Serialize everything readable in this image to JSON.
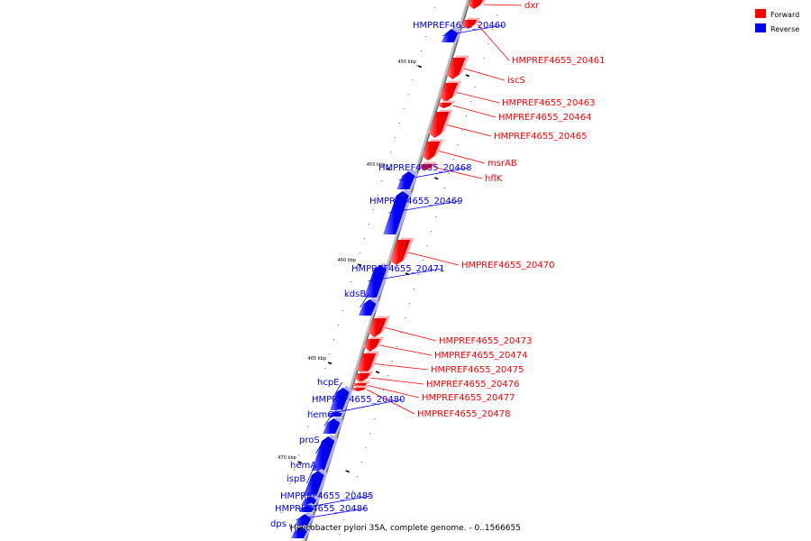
{
  "caption": "Helicobacter pylori 35A, complete genome. - 0..1566655",
  "legend": [
    {
      "label": "Forward",
      "color": "#ff0000"
    },
    {
      "label": "Reverse",
      "color": "#0000ff"
    }
  ],
  "colors": {
    "forward": "#ff0000",
    "reverse": "#0000ff",
    "backbone": "#888888"
  },
  "ticks": [
    "450 kbp",
    "455 kbp",
    "460 kbp",
    "465 kbp",
    "470 kbp"
  ],
  "genes": [
    {
      "label": "dxr",
      "strand": "forward"
    },
    {
      "label": "HMPREF4655_20460",
      "strand": "reverse"
    },
    {
      "label": "HMPREF4655_20461",
      "strand": "forward"
    },
    {
      "label": "iscS",
      "strand": "forward"
    },
    {
      "label": "HMPREF4655_20463",
      "strand": "forward"
    },
    {
      "label": "HMPREF4655_20464",
      "strand": "forward"
    },
    {
      "label": "HMPREF4655_20465",
      "strand": "forward"
    },
    {
      "label": "msrAB",
      "strand": "forward"
    },
    {
      "label": "hflK",
      "strand": "forward"
    },
    {
      "label": "HMPREF4655_20468",
      "strand": "reverse"
    },
    {
      "label": "HMPREF4655_20469",
      "strand": "reverse"
    },
    {
      "label": "HMPREF4655_20470",
      "strand": "forward"
    },
    {
      "label": "HMPREF4655_20471",
      "strand": "reverse"
    },
    {
      "label": "kdsB",
      "strand": "reverse"
    },
    {
      "label": "HMPREF4655_20473",
      "strand": "forward"
    },
    {
      "label": "HMPREF4655_20474",
      "strand": "forward"
    },
    {
      "label": "HMPREF4655_20475",
      "strand": "forward"
    },
    {
      "label": "HMPREF4655_20476",
      "strand": "forward"
    },
    {
      "label": "HMPREF4655_20477",
      "strand": "forward"
    },
    {
      "label": "HMPREF4655_20478",
      "strand": "forward"
    },
    {
      "label": "hcpE",
      "strand": "reverse"
    },
    {
      "label": "HMPREF4655_20480",
      "strand": "reverse"
    },
    {
      "label": "hemC",
      "strand": "reverse"
    },
    {
      "label": "proS",
      "strand": "reverse"
    },
    {
      "label": "hemA",
      "strand": "reverse"
    },
    {
      "label": "ispB",
      "strand": "reverse"
    },
    {
      "label": "HMPREF4655_20485",
      "strand": "reverse"
    },
    {
      "label": "HMPREF4655_20486",
      "strand": "reverse"
    },
    {
      "label": "dps",
      "strand": "reverse"
    }
  ]
}
